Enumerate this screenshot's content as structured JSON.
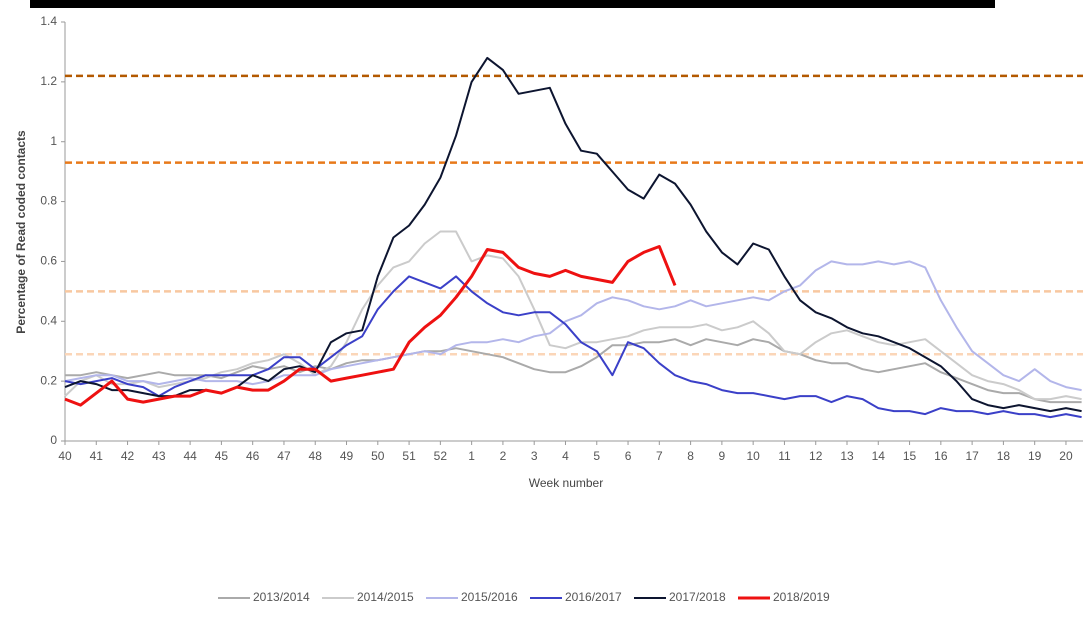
{
  "chart_data": {
    "type": "line",
    "y_label": "Percentage of Read coded contacts",
    "x_label": "Week number",
    "ylim": [
      0,
      1.4
    ],
    "yticks": [
      0,
      0.2,
      0.4,
      0.6,
      0.8,
      1,
      1.2,
      1.4
    ],
    "xlim": [
      0,
      32.55
    ],
    "xticks": [
      {
        "value": 0,
        "label": "40"
      },
      {
        "value": 1,
        "label": "41"
      },
      {
        "value": 2,
        "label": "42"
      },
      {
        "value": 3,
        "label": "43"
      },
      {
        "value": 4,
        "label": "44"
      },
      {
        "value": 5,
        "label": "45"
      },
      {
        "value": 6,
        "label": "46"
      },
      {
        "value": 7,
        "label": "47"
      },
      {
        "value": 8,
        "label": "48"
      },
      {
        "value": 9,
        "label": "49"
      },
      {
        "value": 10,
        "label": "50"
      },
      {
        "value": 11,
        "label": "51"
      },
      {
        "value": 12,
        "label": "52"
      },
      {
        "value": 13,
        "label": "1"
      },
      {
        "value": 14,
        "label": "2"
      },
      {
        "value": 15,
        "label": "3"
      },
      {
        "value": 16,
        "label": "4"
      },
      {
        "value": 17,
        "label": "5"
      },
      {
        "value": 18,
        "label": "6"
      },
      {
        "value": 19,
        "label": "7"
      },
      {
        "value": 20,
        "label": "8"
      },
      {
        "value": 21,
        "label": "9"
      },
      {
        "value": 22,
        "label": "10"
      },
      {
        "value": 23,
        "label": "11"
      },
      {
        "value": 24,
        "label": "12"
      },
      {
        "value": 25,
        "label": "13"
      },
      {
        "value": 26,
        "label": "14"
      },
      {
        "value": 27,
        "label": "15"
      },
      {
        "value": 28,
        "label": "16"
      },
      {
        "value": 29,
        "label": "17"
      },
      {
        "value": 30,
        "label": "18"
      },
      {
        "value": 31,
        "label": "19"
      },
      {
        "value": 32,
        "label": "20"
      }
    ],
    "reference_lines": [
      {
        "value": 1.22,
        "color": "#b35900"
      },
      {
        "value": 0.93,
        "color": "#e8791a"
      },
      {
        "value": 0.5,
        "color": "#f8c8a0"
      },
      {
        "value": 0.29,
        "color": "#fbd6b8"
      }
    ],
    "x": [
      0,
      0.5,
      1,
      1.5,
      2,
      2.5,
      3,
      3.5,
      4,
      4.5,
      5,
      5.5,
      6,
      6.5,
      7,
      7.5,
      8,
      8.5,
      9,
      9.5,
      10,
      10.5,
      11,
      11.5,
      12,
      12.5,
      13,
      13.5,
      14,
      14.5,
      15,
      15.5,
      16,
      16.5,
      17,
      17.5,
      18,
      18.5,
      19,
      19.5,
      20,
      20.5,
      21,
      21.5,
      22,
      22.5,
      23,
      23.5,
      24,
      24.5,
      25,
      25.5,
      26,
      26.5,
      27,
      27.5,
      28,
      28.5,
      29,
      29.5,
      30,
      30.5,
      31,
      31.5,
      32,
      32.5
    ],
    "series": [
      {
        "name": "2013/2014",
        "color": "#aaaaaa",
        "width": 2,
        "values": [
          0.22,
          0.22,
          0.23,
          0.22,
          0.21,
          0.22,
          0.23,
          0.22,
          0.22,
          0.22,
          0.21,
          0.23,
          0.25,
          0.24,
          0.25,
          0.23,
          0.25,
          0.24,
          0.26,
          0.27,
          0.27,
          0.28,
          0.29,
          0.3,
          0.3,
          0.31,
          0.3,
          0.29,
          0.28,
          0.26,
          0.24,
          0.23,
          0.23,
          0.25,
          0.28,
          0.32,
          0.32,
          0.33,
          0.33,
          0.34,
          0.32,
          0.34,
          0.33,
          0.32,
          0.34,
          0.33,
          0.3,
          0.29,
          0.27,
          0.26,
          0.26,
          0.24,
          0.23,
          0.24,
          0.25,
          0.26,
          0.23,
          0.21,
          0.19,
          0.17,
          0.16,
          0.16,
          0.14,
          0.13,
          0.13,
          0.13
        ]
      },
      {
        "name": "2014/2015",
        "color": "#cbcbcb",
        "width": 2,
        "values": [
          0.15,
          0.2,
          0.22,
          0.19,
          0.19,
          0.2,
          0.18,
          0.19,
          0.2,
          0.21,
          0.23,
          0.24,
          0.26,
          0.27,
          0.29,
          0.26,
          0.22,
          0.25,
          0.33,
          0.44,
          0.52,
          0.58,
          0.6,
          0.66,
          0.7,
          0.7,
          0.6,
          0.62,
          0.61,
          0.55,
          0.44,
          0.32,
          0.31,
          0.33,
          0.33,
          0.34,
          0.35,
          0.37,
          0.38,
          0.38,
          0.38,
          0.39,
          0.37,
          0.38,
          0.4,
          0.36,
          0.3,
          0.29,
          0.33,
          0.36,
          0.37,
          0.35,
          0.33,
          0.32,
          0.33,
          0.34,
          0.3,
          0.26,
          0.22,
          0.2,
          0.19,
          0.17,
          0.14,
          0.14,
          0.15,
          0.14
        ]
      },
      {
        "name": "2015/2016",
        "color": "#b3b6ea",
        "width": 2,
        "values": [
          0.2,
          0.21,
          0.22,
          0.22,
          0.2,
          0.2,
          0.19,
          0.2,
          0.21,
          0.2,
          0.2,
          0.2,
          0.19,
          0.2,
          0.22,
          0.22,
          0.22,
          0.24,
          0.25,
          0.26,
          0.27,
          0.28,
          0.29,
          0.3,
          0.29,
          0.32,
          0.33,
          0.33,
          0.34,
          0.33,
          0.35,
          0.36,
          0.4,
          0.42,
          0.46,
          0.48,
          0.47,
          0.45,
          0.44,
          0.45,
          0.47,
          0.45,
          0.46,
          0.47,
          0.48,
          0.47,
          0.5,
          0.52,
          0.57,
          0.6,
          0.59,
          0.59,
          0.6,
          0.59,
          0.6,
          0.58,
          0.47,
          0.38,
          0.3,
          0.26,
          0.22,
          0.2,
          0.24,
          0.2,
          0.18,
          0.17
        ]
      },
      {
        "name": "2016/2017",
        "color": "#3b40c8",
        "width": 2,
        "values": [
          0.2,
          0.19,
          0.2,
          0.21,
          0.19,
          0.18,
          0.15,
          0.18,
          0.2,
          0.22,
          0.22,
          0.22,
          0.22,
          0.24,
          0.28,
          0.28,
          0.24,
          0.28,
          0.32,
          0.35,
          0.44,
          0.5,
          0.55,
          0.53,
          0.51,
          0.55,
          0.5,
          0.46,
          0.43,
          0.42,
          0.43,
          0.43,
          0.39,
          0.33,
          0.3,
          0.22,
          0.33,
          0.31,
          0.26,
          0.22,
          0.2,
          0.19,
          0.17,
          0.16,
          0.16,
          0.15,
          0.14,
          0.15,
          0.15,
          0.13,
          0.15,
          0.14,
          0.11,
          0.1,
          0.1,
          0.09,
          0.11,
          0.1,
          0.1,
          0.09,
          0.1,
          0.09,
          0.09,
          0.08,
          0.09,
          0.08
        ]
      },
      {
        "name": "2017/2018",
        "color": "#0d1530",
        "width": 2,
        "values": [
          0.18,
          0.2,
          0.19,
          0.17,
          0.17,
          0.16,
          0.15,
          0.15,
          0.17,
          0.17,
          0.16,
          0.18,
          0.22,
          0.2,
          0.24,
          0.25,
          0.23,
          0.33,
          0.36,
          0.37,
          0.55,
          0.68,
          0.72,
          0.79,
          0.88,
          1.02,
          1.2,
          1.28,
          1.24,
          1.16,
          1.17,
          1.18,
          1.06,
          0.97,
          0.96,
          0.9,
          0.84,
          0.81,
          0.89,
          0.86,
          0.79,
          0.7,
          0.63,
          0.59,
          0.66,
          0.64,
          0.55,
          0.47,
          0.43,
          0.41,
          0.38,
          0.36,
          0.35,
          0.33,
          0.31,
          0.28,
          0.25,
          0.2,
          0.14,
          0.12,
          0.11,
          0.12,
          0.11,
          0.1,
          0.11,
          0.1
        ]
      },
      {
        "name": "2018/2019",
        "color": "#ee1111",
        "width": 3,
        "values": [
          0.14,
          0.12,
          0.16,
          0.2,
          0.14,
          0.13,
          0.14,
          0.15,
          0.15,
          0.17,
          0.16,
          0.18,
          0.17,
          0.17,
          0.2,
          0.24,
          0.24,
          0.2,
          0.21,
          0.22,
          0.23,
          0.24,
          0.33,
          0.38,
          0.42,
          0.48,
          0.55,
          0.64,
          0.63,
          0.58,
          0.56,
          0.55,
          0.57,
          0.55,
          0.54,
          0.53,
          0.6,
          0.63,
          0.65,
          0.52,
          null,
          null,
          null,
          null,
          null,
          null,
          null,
          null,
          null,
          null,
          null,
          null,
          null,
          null,
          null,
          null,
          null,
          null,
          null,
          null,
          null,
          null,
          null,
          null,
          null,
          null
        ]
      }
    ]
  }
}
